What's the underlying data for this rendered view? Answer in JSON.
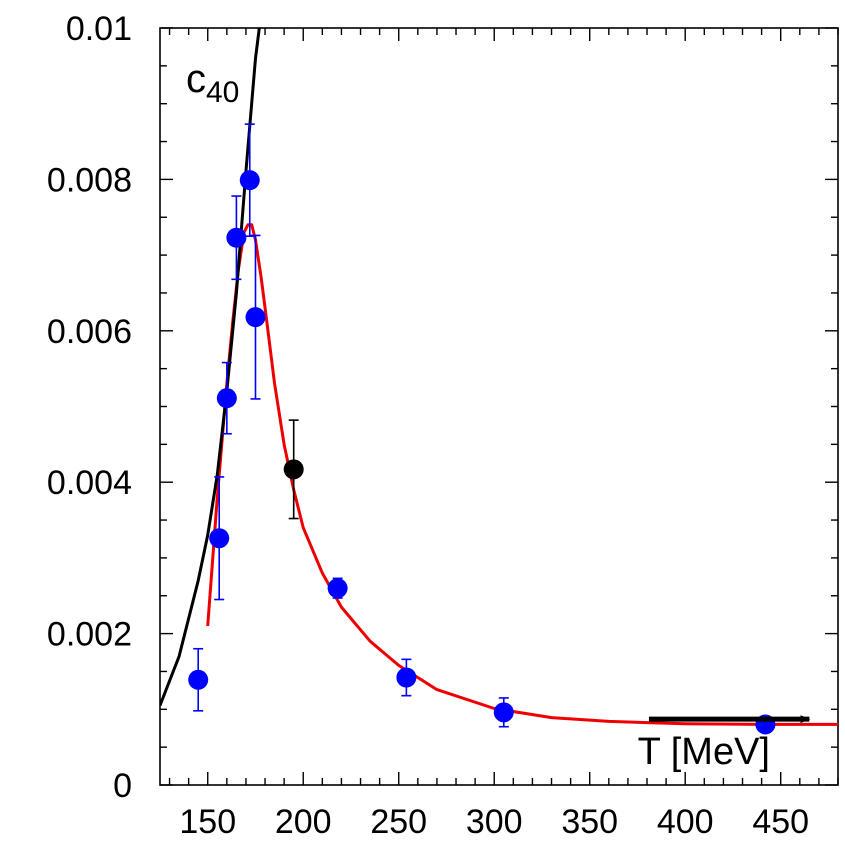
{
  "chart_data": {
    "type": "scatter",
    "title": "",
    "xlabel": "",
    "ylabel": "",
    "xlim": [
      125,
      480
    ],
    "ylim": [
      0,
      0.01
    ],
    "x_ticks": [
      150,
      200,
      250,
      300,
      350,
      400,
      450
    ],
    "x_tick_labels": [
      "150",
      "200",
      "250",
      "300",
      "350",
      "400",
      "450"
    ],
    "y_ticks": [
      0,
      0.002,
      0.004,
      0.006,
      0.008,
      0.01
    ],
    "y_tick_labels": [
      "0",
      "0.002",
      "0.004",
      "0.006",
      "0.008",
      "0.01"
    ],
    "grid": false,
    "legend": "none",
    "annotations": {
      "series_label_main": "c",
      "series_label_sub": "40",
      "axis_arrow_label": "T [MeV]"
    },
    "colors": {
      "blue_points": "#0000ff",
      "black_point": "#000000",
      "red_curve": "#ee0000",
      "black_curve": "#000000"
    },
    "series": [
      {
        "kind": "points",
        "color": "blue",
        "points": [
          {
            "x": 145,
            "y": 0.00139,
            "err": 0.00041
          },
          {
            "x": 156,
            "y": 0.00326,
            "err": 0.00081
          },
          {
            "x": 160,
            "y": 0.00511,
            "err": 0.00047
          },
          {
            "x": 165,
            "y": 0.00723,
            "err": 0.00055
          },
          {
            "x": 172,
            "y": 0.00799,
            "err": 0.00074
          },
          {
            "x": 175,
            "y": 0.00618,
            "err": 0.00108
          },
          {
            "x": 218,
            "y": 0.0026,
            "err": 0.00013
          },
          {
            "x": 254,
            "y": 0.00142,
            "err": 0.00024
          },
          {
            "x": 305,
            "y": 0.00096,
            "err": 0.00019
          },
          {
            "x": 442,
            "y": 0.0008,
            "err": 4e-05
          }
        ]
      },
      {
        "kind": "points",
        "color": "black",
        "points": [
          {
            "x": 195,
            "y": 0.00417,
            "err": 0.00065
          }
        ]
      },
      {
        "kind": "curve",
        "color": "red",
        "points": [
          [
            150,
            0.0021
          ],
          [
            155,
            0.0038
          ],
          [
            158,
            0.0047
          ],
          [
            160,
            0.0053
          ],
          [
            163,
            0.0061
          ],
          [
            166,
            0.0068
          ],
          [
            169,
            0.0073
          ],
          [
            171,
            0.0074
          ],
          [
            173,
            0.0074
          ],
          [
            175,
            0.0072
          ],
          [
            178,
            0.0067
          ],
          [
            181,
            0.0061
          ],
          [
            185,
            0.0053
          ],
          [
            190,
            0.0045
          ],
          [
            195,
            0.0039
          ],
          [
            200,
            0.0034
          ],
          [
            210,
            0.0028
          ],
          [
            220,
            0.00235
          ],
          [
            235,
            0.0019
          ],
          [
            250,
            0.00158
          ],
          [
            270,
            0.00126
          ],
          [
            300,
            0.00101
          ],
          [
            330,
            0.00089
          ],
          [
            360,
            0.00084
          ],
          [
            400,
            0.00081
          ],
          [
            440,
            0.0008
          ],
          [
            480,
            0.0008
          ]
        ]
      },
      {
        "kind": "curve",
        "color": "black",
        "points": [
          [
            125,
            0.00105
          ],
          [
            135,
            0.0017
          ],
          [
            145,
            0.0027
          ],
          [
            150,
            0.0033
          ],
          [
            155,
            0.0041
          ],
          [
            160,
            0.0052
          ],
          [
            165,
            0.0065
          ],
          [
            170,
            0.0081
          ],
          [
            175,
            0.0096
          ],
          [
            178,
            0.0102
          ]
        ]
      }
    ],
    "arrow": {
      "x_from": 381,
      "x_to": 465,
      "y": 0.00087
    }
  }
}
